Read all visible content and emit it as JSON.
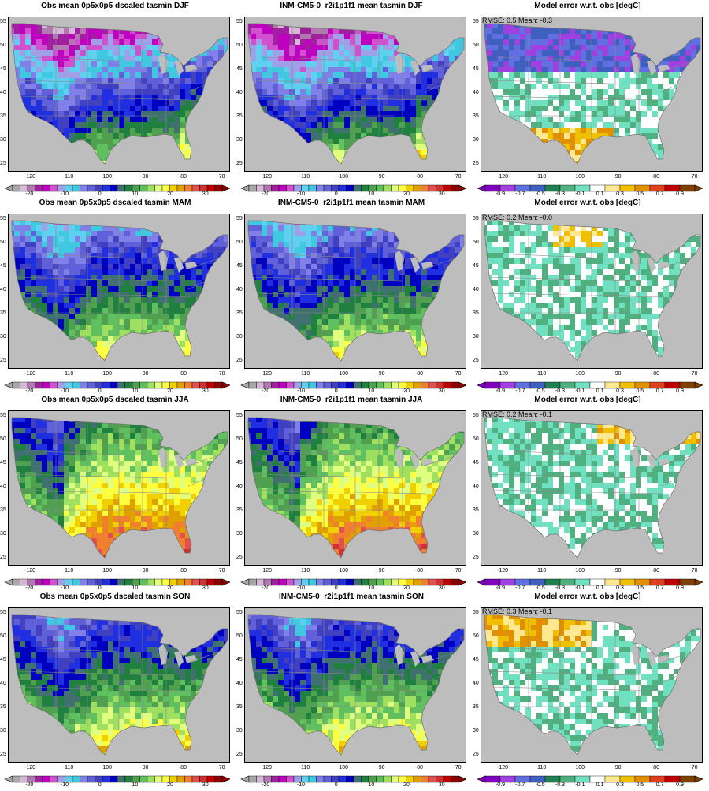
{
  "rows": [
    {
      "season": "DJF",
      "obs_title": "Obs mean 0p5x0p5 dscaled tasmin DJF",
      "model_title": "INM-CM5-0_r2i1p1f1 mean tasmin DJF",
      "error_title": "Model error w.r.t. obs [degC]",
      "error_stats": "RMSE: 0.5  Mean: -0.3"
    },
    {
      "season": "MAM",
      "obs_title": "Obs mean 0p5x0p5 dscaled tasmin MAM",
      "model_title": "INM-CM5-0_r2i1p1f1 mean tasmin MAM",
      "error_title": "Model error w.r.t. obs [degC]",
      "error_stats": "RMSE: 0.2  Mean: -0.0"
    },
    {
      "season": "JJA",
      "obs_title": "Obs mean 0p5x0p5 dscaled tasmin JJA",
      "model_title": "INM-CM5-0_r2i1p1f1 mean tasmin JJA",
      "error_title": "Model error w.r.t. obs [degC]",
      "error_stats": "RMSE: 0.2  Mean: -0.1"
    },
    {
      "season": "SON",
      "obs_title": "Obs mean 0p5x0p5 dscaled tasmin SON",
      "model_title": "INM-CM5-0_r2i1p1f1 mean tasmin SON",
      "error_title": "Model error w.r.t. obs [degC]",
      "error_stats": "RMSE: 0.3  Mean: -0.1"
    }
  ],
  "lat_ticks": [
    "55",
    "50",
    "45",
    "40",
    "35",
    "30",
    "25"
  ],
  "lon_ticks": [
    "-120",
    "-110",
    "-100",
    "-90",
    "-80",
    "-70"
  ],
  "temp_colorbar": {
    "labels": [
      "-20",
      "-10",
      "0",
      "10",
      "20",
      "30"
    ],
    "colors": [
      "#a8a8a8",
      "#d6b8d6",
      "#b07ab0",
      "#a020a0",
      "#c000c0",
      "#d050d0",
      "#a0a0e8",
      "#60d0f0",
      "#40c8e0",
      "#8080e8",
      "#6060d8",
      "#4040c0",
      "#2030e0",
      "#0000c0",
      "#407070",
      "#208040",
      "#50a050",
      "#60c060",
      "#a0e060",
      "#e0ff80",
      "#ffff40",
      "#f0d000",
      "#e0a000",
      "#f08030",
      "#e05050",
      "#d03030",
      "#c00000",
      "#900000"
    ]
  },
  "error_colorbar": {
    "labels": [
      "-0.9",
      "-0.7",
      "-0.5",
      "-0.3",
      "-0.1",
      "0.1",
      "0.3",
      "0.5",
      "0.7",
      "0.9"
    ],
    "colors": [
      "#8000c0",
      "#a040e0",
      "#6070e0",
      "#4060c0",
      "#208050",
      "#50b080",
      "#70e0c0",
      "#ffffff",
      "#ffe890",
      "#f0c000",
      "#e09000",
      "#e04020",
      "#c00000",
      "#804000"
    ]
  },
  "colors": {
    "land_mask": "#bdbdbd",
    "border": "#888888"
  }
}
